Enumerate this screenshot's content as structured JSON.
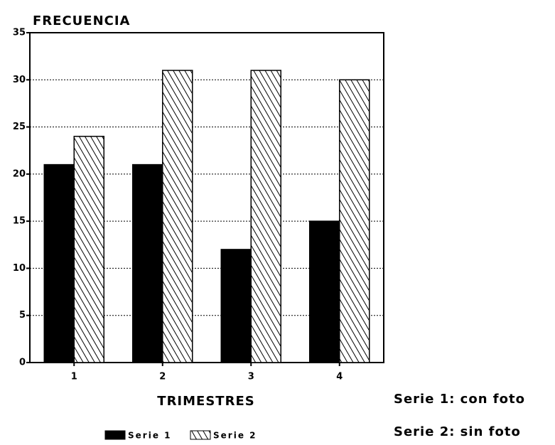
{
  "chart_data": {
    "type": "bar",
    "title": "FRECUENCIA",
    "x_label": "TRIMESTRES",
    "categories": [
      "1",
      "2",
      "3",
      "4"
    ],
    "series": [
      {
        "name": "Serie 1",
        "color": "#000000",
        "fill": "solid",
        "values": [
          21,
          21,
          12,
          15
        ]
      },
      {
        "name": "Serie 2",
        "color": "#000000",
        "fill": "hatch",
        "values": [
          24,
          31,
          31,
          30
        ]
      }
    ],
    "annotations": [
      "Serie 1: con foto",
      "Serie 2: sin foto"
    ],
    "ylim": [
      0,
      35
    ],
    "yticks": [
      0,
      5,
      10,
      15,
      20,
      25,
      30,
      35
    ],
    "grid": true,
    "legend": "bottom"
  }
}
